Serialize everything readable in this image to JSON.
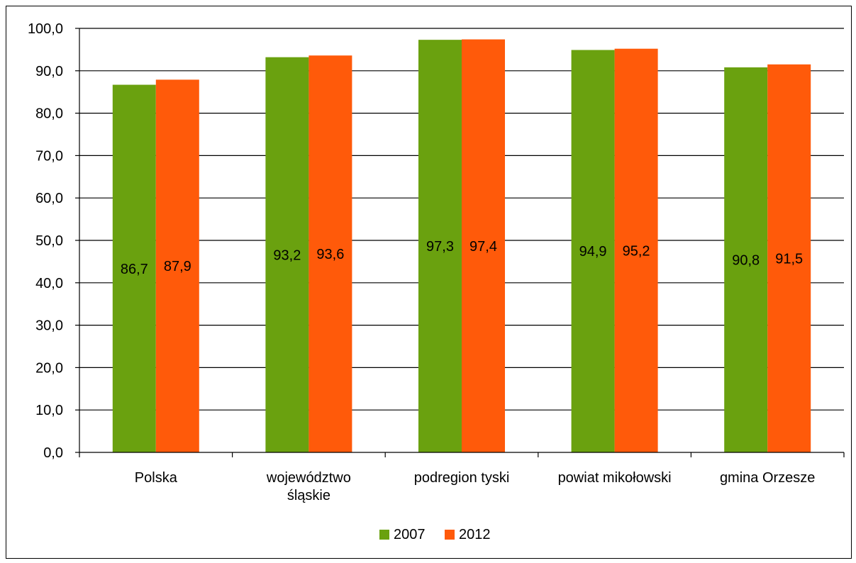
{
  "chart_data": {
    "type": "bar",
    "categories": [
      [
        "Polska"
      ],
      [
        "województwo",
        "śląskie"
      ],
      [
        "podregion tyski"
      ],
      [
        "powiat mikołowski"
      ],
      [
        "gmina Orzesze"
      ]
    ],
    "series": [
      {
        "name": "2007",
        "color": "#6aa10f",
        "values": [
          86.7,
          93.2,
          97.3,
          94.9,
          90.8
        ],
        "labels": [
          "86,7",
          "93,2",
          "97,3",
          "94,9",
          "90,8"
        ]
      },
      {
        "name": "2012",
        "color": "#ff5a0a",
        "values": [
          87.9,
          93.6,
          97.4,
          95.2,
          91.5
        ],
        "labels": [
          "87,9",
          "93,6",
          "97,4",
          "95,2",
          "91,5"
        ]
      }
    ],
    "ylim": [
      0,
      100
    ],
    "yticks": [
      0,
      10,
      20,
      30,
      40,
      50,
      60,
      70,
      80,
      90,
      100
    ],
    "ytick_labels": [
      "0,0",
      "10,0",
      "20,0",
      "30,0",
      "40,0",
      "50,0",
      "60,0",
      "70,0",
      "80,0",
      "90,0",
      "100,0"
    ],
    "grid": true,
    "legend_position": "bottom-center",
    "title": "",
    "xlabel": "",
    "ylabel": ""
  }
}
